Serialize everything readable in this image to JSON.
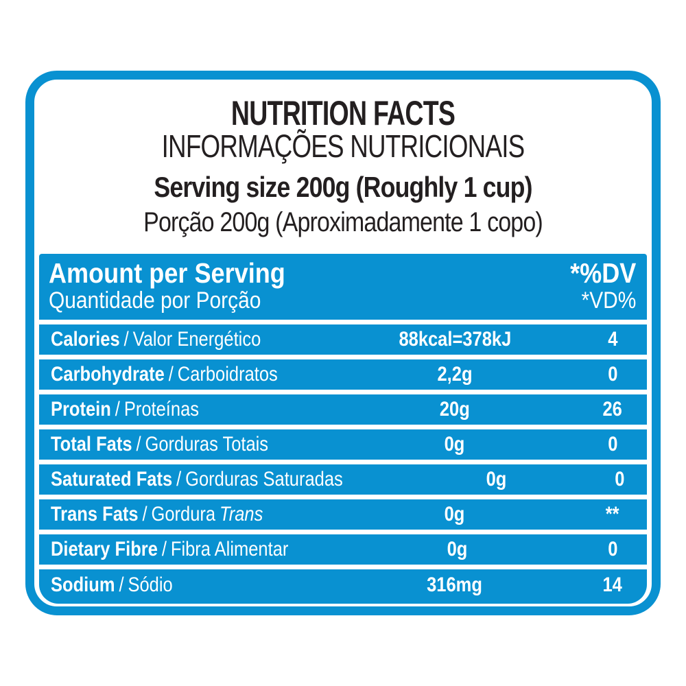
{
  "colors": {
    "accent_blue": "#0991D1",
    "title_dark": "#231F20",
    "text_on_blue": "#FFFFFF",
    "background": "#FFFFFF"
  },
  "title": {
    "line1": "NUTRITION FACTS",
    "line2": "INFORMAÇÕES NUTRICIONAIS",
    "line3": "Serving size 200g (Roughly 1 cup)",
    "line4": "Porção 200g (Aproximadamente 1 copo)"
  },
  "table": {
    "separator": "/",
    "header": {
      "left_en": "Amount per Serving",
      "left_pt": "Quantidade por Porção",
      "right_en": "*%DV",
      "right_pt": "*VD%"
    },
    "rows": [
      {
        "en": "Calories",
        "pt": "Valor Energético",
        "pt_italic": "",
        "amount": "88kcal=378kJ",
        "dv": "4"
      },
      {
        "en": "Carbohydrate",
        "pt": "Carboidratos",
        "pt_italic": "",
        "amount": "2,2g",
        "dv": "0"
      },
      {
        "en": "Protein",
        "pt": "Proteínas",
        "pt_italic": "",
        "amount": "20g",
        "dv": "26"
      },
      {
        "en": "Total Fats",
        "pt": "Gorduras Totais",
        "pt_italic": "",
        "amount": "0g",
        "dv": "0"
      },
      {
        "en": "Saturated Fats",
        "pt": "Gorduras Saturadas",
        "pt_italic": "",
        "amount": "0g",
        "dv": "0"
      },
      {
        "en": "Trans Fats",
        "pt": "Gordura",
        "pt_italic": "Trans",
        "amount": "0g",
        "dv": "**"
      },
      {
        "en": "Dietary Fibre",
        "pt": "Fibra Alimentar",
        "pt_italic": "",
        "amount": "0g",
        "dv": "0"
      },
      {
        "en": "Sodium",
        "pt": "Sódio",
        "pt_italic": "",
        "amount": "316mg",
        "dv": "14"
      }
    ]
  }
}
